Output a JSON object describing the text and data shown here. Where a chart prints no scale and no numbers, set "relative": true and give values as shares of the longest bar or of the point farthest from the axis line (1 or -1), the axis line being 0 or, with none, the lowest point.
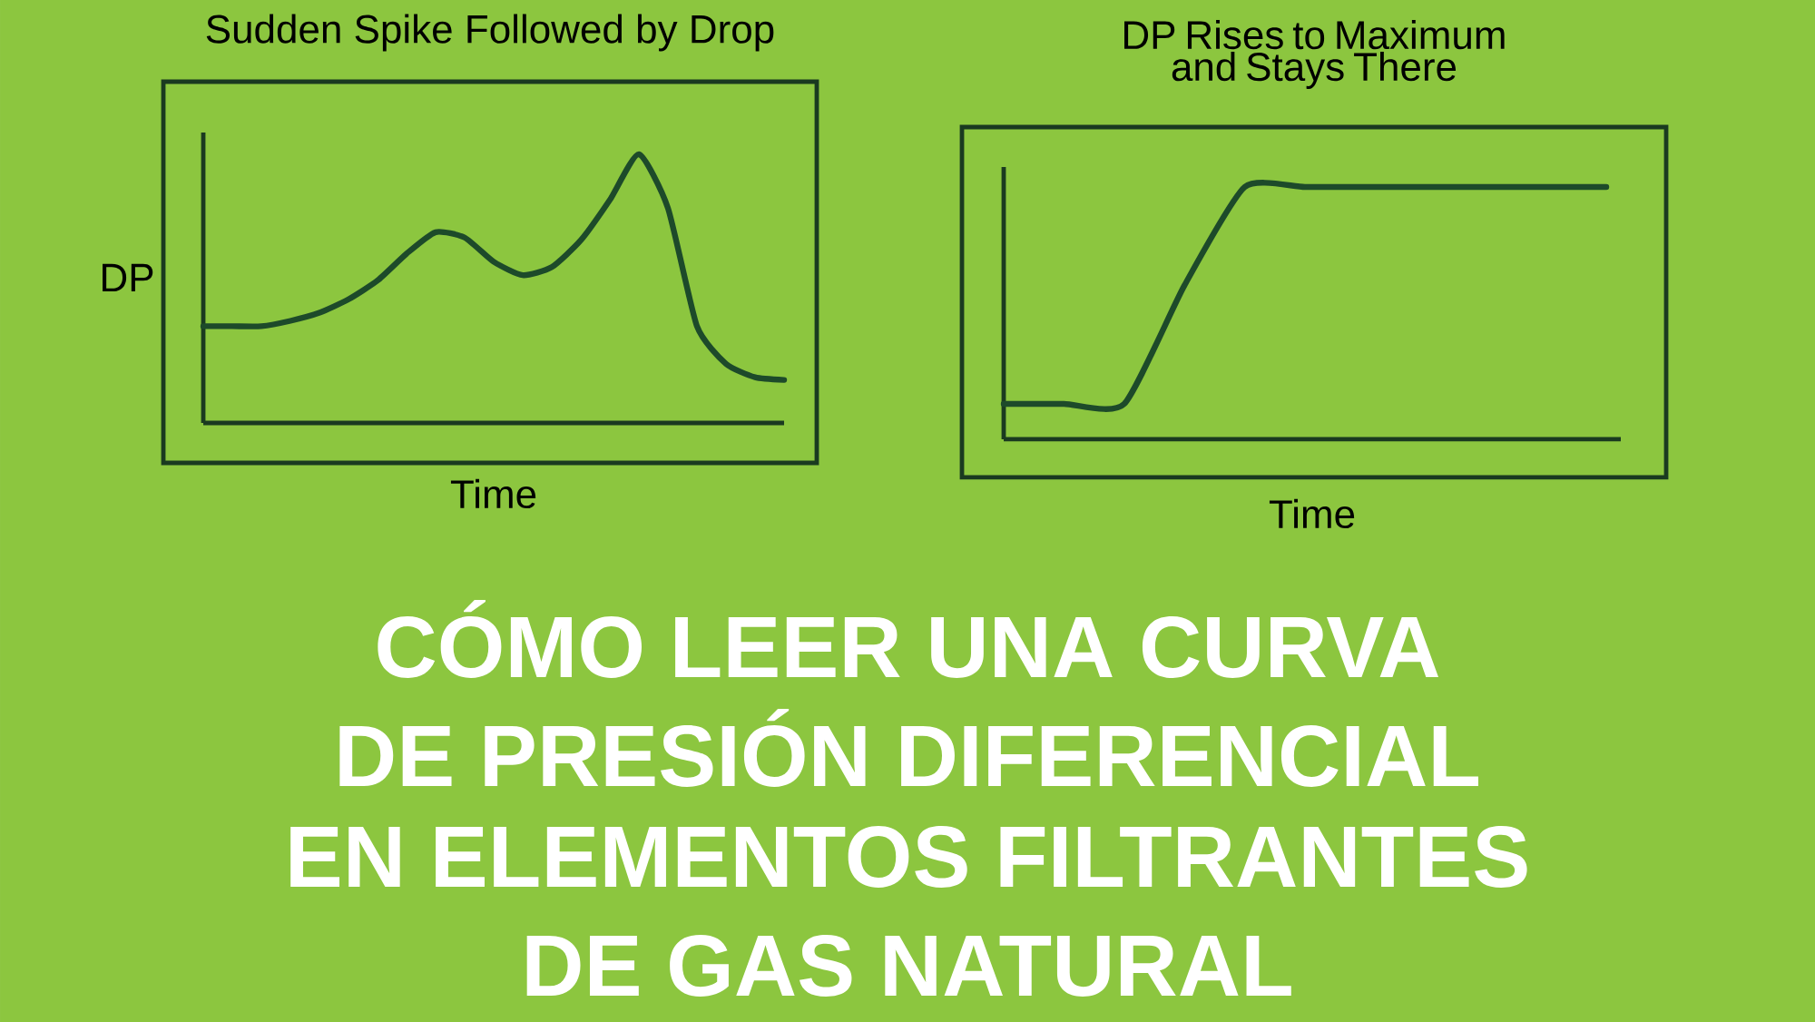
{
  "chart_data": [
    {
      "type": "line",
      "title": "Sudden Spike Followed by Drop",
      "xlabel": "Time",
      "ylabel": "DP",
      "relative": true,
      "categories": [
        null,
        null,
        null,
        null,
        null,
        null,
        null,
        null,
        null,
        null,
        null,
        null,
        null,
        null,
        null,
        null,
        null,
        null,
        null,
        null,
        null
      ],
      "series": [
        {
          "color": "#1d4a2a",
          "values": [
            0.36,
            0.36,
            0.36,
            0.38,
            0.41,
            0.46,
            0.53,
            0.63,
            0.71,
            0.69,
            0.6,
            0.55,
            0.58,
            0.68,
            0.83,
            1,
            0.8,
            0.36,
            0.22,
            0.17,
            0.16
          ]
        }
      ]
    },
    {
      "type": "line",
      "title": "DP Rises to Maximum and Stays There",
      "xlabel": "Time",
      "relative": true,
      "categories": [
        null,
        null,
        null,
        null,
        null,
        null,
        null,
        null,
        null,
        null,
        null
      ],
      "series": [
        {
          "color": "#1d4a2a",
          "values": [
            0.14,
            0.14,
            0.14,
            0.61,
            1,
            1,
            1,
            1,
            1,
            1,
            1
          ]
        }
      ]
    },
    {
      "type": "other",
      "annotations": [
        "CÓMO LEER UNA CURVA",
        "DE PRESIÓN  DIFERENCIAL",
        "EN ELEMENTOS FILTRANTES",
        "DE GAS NATURAL"
      ]
    }
  ]
}
